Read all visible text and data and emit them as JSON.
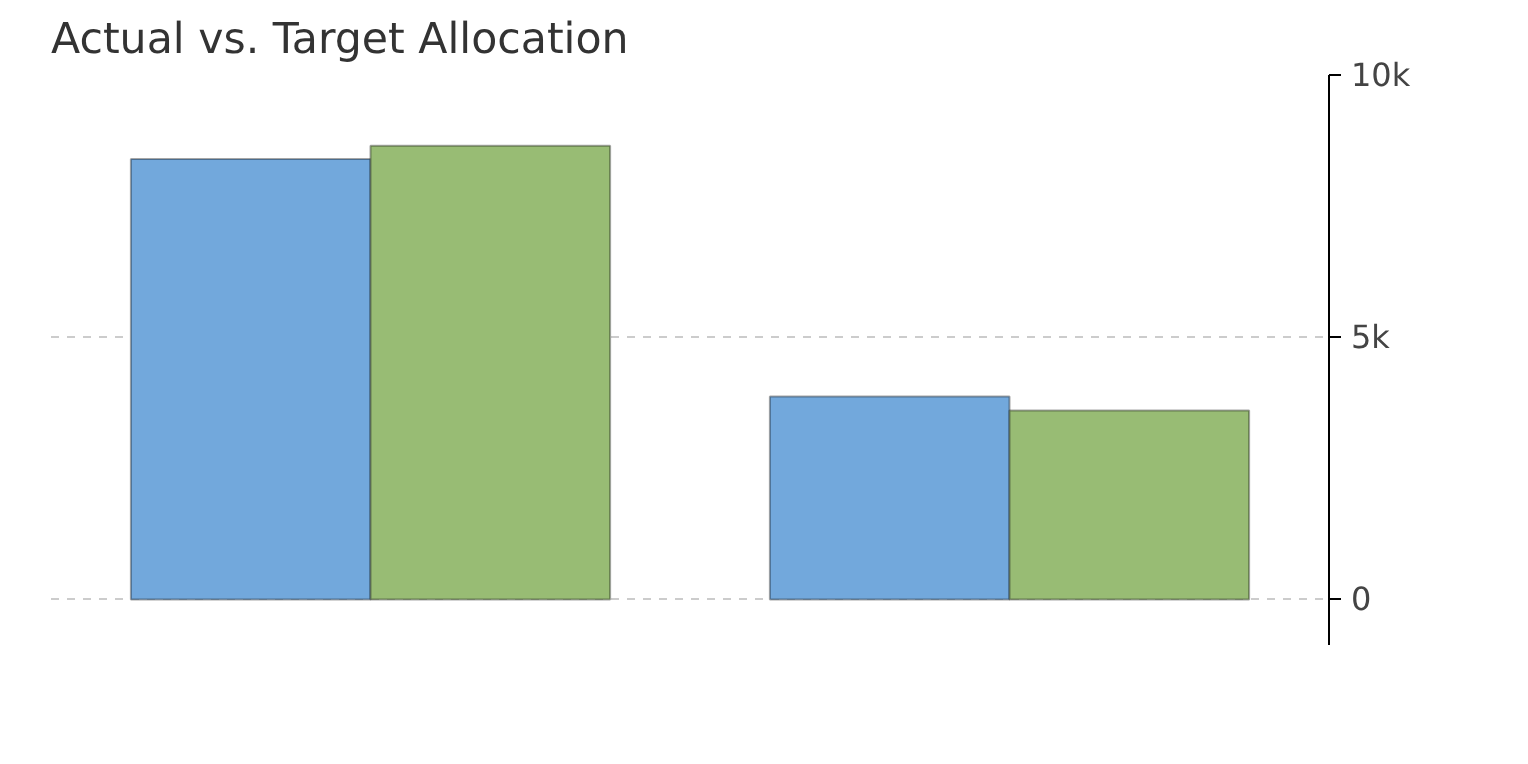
{
  "chart_data": {
    "type": "bar",
    "title": "Actual vs. Target Allocation",
    "categories": [
      null,
      null
    ],
    "series": [
      {
        "color": "#72a8dc",
        "values": [
          8400,
          3870
        ]
      },
      {
        "color": "#98bc74",
        "values": [
          8650,
          3600
        ]
      }
    ],
    "ylim": [
      -870,
      10000
    ],
    "yticks": [
      0,
      {
        "value": 5000,
        "label": "5k"
      },
      {
        "value": 10000,
        "label": "10k"
      }
    ],
    "grid": "y"
  }
}
